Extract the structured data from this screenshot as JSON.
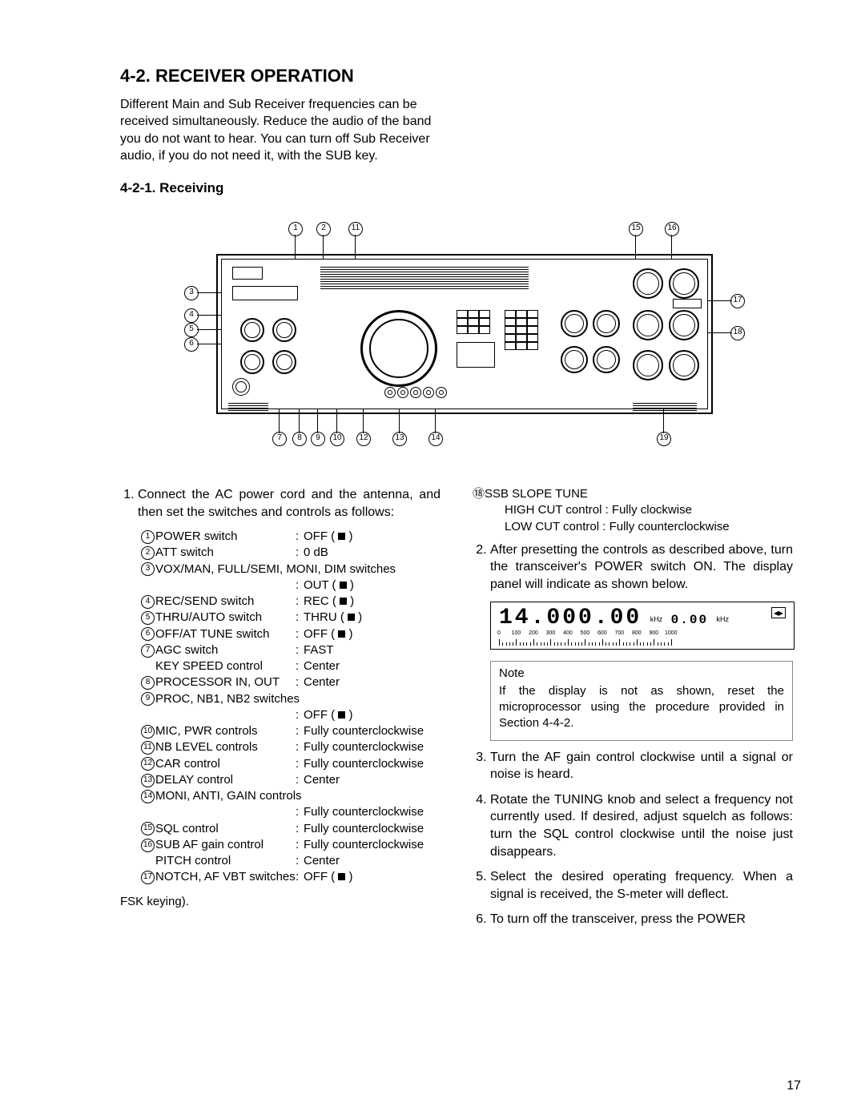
{
  "section_title": "4-2.  RECEIVER OPERATION",
  "intro": "Different Main and Sub Receiver frequencies can be received simultaneously. Reduce the audio of the band you do not want to hear. You can turn off Sub Receiver audio, if you do not need it, with the SUB key.",
  "subsection_title": "4-2-1.  Receiving",
  "step1_text": "Connect the AC power cord and the antenna, and then set the switches and controls as follows:",
  "settings": [
    {
      "n": "1",
      "label": "POWER switch",
      "value": "OFF ( ■ )"
    },
    {
      "n": "2",
      "label": "ATT switch",
      "value": "0 dB"
    },
    {
      "n": "3",
      "label": "VOX/MAN, FULL/SEMI, MONI, DIM switches",
      "value": "OUT ( ■ )"
    },
    {
      "n": "4",
      "label": "REC/SEND switch",
      "value": "REC ( ■ )"
    },
    {
      "n": "5",
      "label": "THRU/AUTO switch",
      "value": "THRU ( ■ )"
    },
    {
      "n": "6",
      "label": "OFF/AT TUNE switch",
      "value": "OFF ( ■ )"
    },
    {
      "n": "7",
      "label": "AGC switch",
      "value": "FAST"
    },
    {
      "n": "",
      "label": "KEY SPEED control",
      "value": "Center"
    },
    {
      "n": "8",
      "label": "PROCESSOR IN, OUT",
      "value": "Center"
    },
    {
      "n": "9",
      "label": "PROC, NB1, NB2 switches",
      "value": "OFF ( ■ )"
    },
    {
      "n": "10",
      "label": "MIC, PWR controls",
      "value": "Fully counterclockwise"
    },
    {
      "n": "11",
      "label": "NB LEVEL controls",
      "value": "Fully counterclockwise"
    },
    {
      "n": "12",
      "label": "CAR control",
      "value": "Fully counterclockwise"
    },
    {
      "n": "13",
      "label": "DELAY control",
      "value": "Center"
    },
    {
      "n": "14",
      "label": "MONI, ANTI, GAIN controls",
      "value": "Fully counterclockwise"
    },
    {
      "n": "15",
      "label": "SQL control",
      "value": "Fully counterclockwise"
    },
    {
      "n": "16",
      "label": "SUB AF gain control",
      "value": "Fully counterclockwise"
    },
    {
      "n": "",
      "label": "PITCH control",
      "value": "Center"
    },
    {
      "n": "17",
      "label": "NOTCH, AF VBT switches",
      "value": "OFF ( ■ )"
    }
  ],
  "fsk_line": "FSK keying).",
  "slope": {
    "title": "⑱SSB SLOPE TUNE",
    "high": "HIGH CUT control : Fully clockwise",
    "low": "LOW CUT control : Fully counterclockwise"
  },
  "step2_text": "After presetting the controls as described above, turn the transceiver's POWER switch ON. The display panel will indicate as shown below.",
  "display": {
    "main_digits": "14.000.00",
    "unit1": "kHz",
    "sub_digits": "0.00",
    "unit2": "kHz",
    "scale_labels": [
      "0",
      "100",
      "200",
      "300",
      "400",
      "500",
      "600",
      "700",
      "800",
      "900",
      "1000"
    ]
  },
  "note_title": "Note",
  "note_body": "If the display is not as shown, reset the microprocessor using the procedure provided in Section 4-4-2.",
  "step3_text": "Turn the AF gain control clockwise until a signal or noise is heard.",
  "step4_text": "Rotate the TUNING knob and select a frequency not currently used. If desired, adjust squelch as follows: turn the SQL control clockwise until the noise just disappears.",
  "step5_text": "Select the desired operating frequency. When a signal is received, the S-meter will deflect.",
  "step6_text": "To turn off the transceiver, press the POWER",
  "page_number": "17",
  "callouts": {
    "top": [
      "1",
      "2",
      "11",
      "15",
      "16"
    ],
    "left": [
      "3",
      "4",
      "5",
      "6"
    ],
    "right": [
      "17",
      "18"
    ],
    "bottom": [
      "7",
      "8",
      "9",
      "10",
      "12",
      "13",
      "14",
      "19"
    ]
  }
}
